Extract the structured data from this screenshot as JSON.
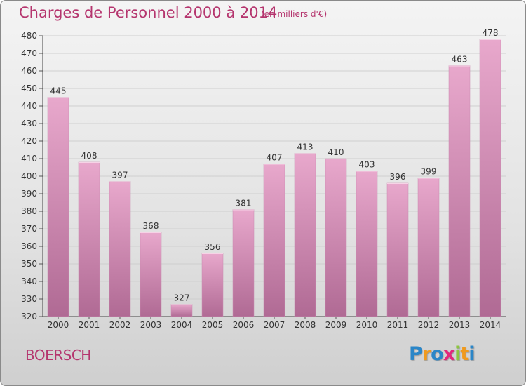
{
  "title": "Charges de Personnel 2000 à 2014",
  "unit_note": "(en milliers d'€)",
  "commune": "BOERSCH",
  "logo": {
    "text": "Proxiti",
    "letters": [
      {
        "ch": "P",
        "color": "#2a86c8"
      },
      {
        "ch": "r",
        "color": "#f19a1c"
      },
      {
        "ch": "o",
        "color": "#2a86c8"
      },
      {
        "ch": "x",
        "color": "#e2287c"
      },
      {
        "ch": "i",
        "color": "#8cc63e"
      },
      {
        "ch": "t",
        "color": "#f19a1c"
      },
      {
        "ch": "i",
        "color": "#2a86c8"
      }
    ]
  },
  "colors": {
    "bar_top": "#e8a8cc",
    "bar_bottom": "#b06a94",
    "title": "#b5356e"
  },
  "chart_data": {
    "type": "bar",
    "categories": [
      "2000",
      "2001",
      "2002",
      "2003",
      "2004",
      "2005",
      "2006",
      "2007",
      "2008",
      "2009",
      "2010",
      "2011",
      "2012",
      "2013",
      "2014"
    ],
    "values": [
      445,
      408,
      397,
      368,
      327,
      356,
      381,
      407,
      413,
      410,
      403,
      396,
      399,
      463,
      478
    ],
    "ylim": [
      320,
      480
    ],
    "yticks": [
      320,
      330,
      340,
      350,
      360,
      370,
      380,
      390,
      400,
      410,
      420,
      430,
      440,
      450,
      460,
      470,
      480
    ],
    "grid": true
  }
}
